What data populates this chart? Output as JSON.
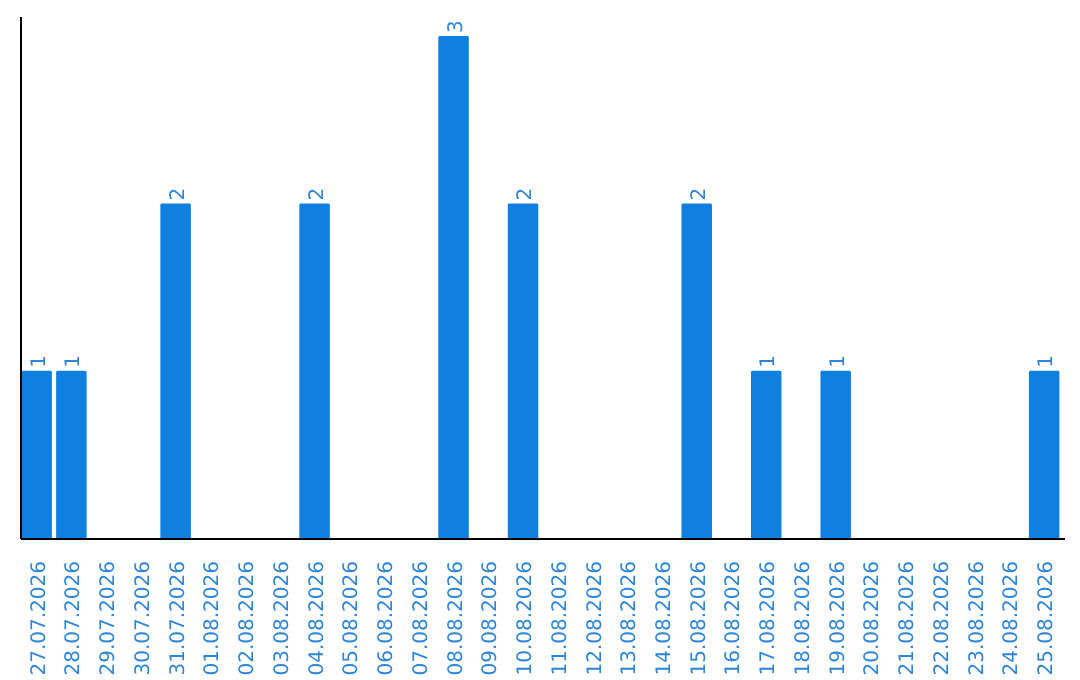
{
  "chart_data": {
    "type": "bar",
    "categories": [
      "27.07.2026",
      "28.07.2026",
      "29.07.2026",
      "30.07.2026",
      "31.07.2026",
      "01.08.2026",
      "02.08.2026",
      "03.08.2026",
      "04.08.2026",
      "05.08.2026",
      "06.08.2026",
      "07.08.2026",
      "08.08.2026",
      "09.08.2026",
      "10.08.2026",
      "11.08.2026",
      "12.08.2026",
      "13.08.2026",
      "14.08.2026",
      "15.08.2026",
      "16.08.2026",
      "17.08.2026",
      "18.08.2026",
      "19.08.2026",
      "20.08.2026",
      "21.08.2026",
      "22.08.2026",
      "23.08.2026",
      "24.08.2026",
      "25.08.2026"
    ],
    "values": [
      1,
      1,
      null,
      null,
      2,
      null,
      null,
      null,
      2,
      null,
      null,
      null,
      3,
      null,
      2,
      null,
      null,
      null,
      null,
      2,
      null,
      1,
      null,
      1,
      null,
      null,
      null,
      null,
      null,
      1
    ],
    "color": "#0f7fe0",
    "data_labels": true,
    "tick_labels": "x",
    "grid": false
  }
}
